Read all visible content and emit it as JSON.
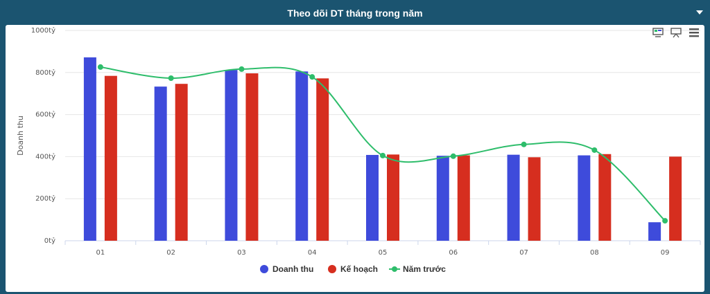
{
  "header": {
    "title": "Theo dõi DT tháng trong năm",
    "menu_icon": "caret-down-icon"
  },
  "toolbar": {
    "icons": [
      "presentation-view-icon",
      "projector-icon",
      "hamburger-menu-icon"
    ]
  },
  "chart_data": {
    "type": "bar",
    "title": "",
    "xlabel": "",
    "ylabel": "Doanh thu",
    "categories": [
      "01",
      "02",
      "03",
      "04",
      "05",
      "06",
      "07",
      "08",
      "09"
    ],
    "ylim": [
      0,
      1000
    ],
    "yticks": [
      0,
      200,
      400,
      600,
      800,
      1000
    ],
    "ytick_labels": [
      "0tỷ",
      "200tỷ",
      "400tỷ",
      "600tỷ",
      "800tỷ",
      "1000tỷ"
    ],
    "grid": true,
    "legend_position": "bottom-center",
    "series": [
      {
        "name": "Doanh thu",
        "type": "bar",
        "color": "#3e4bdb",
        "values": [
          872,
          733,
          812,
          805,
          408,
          404,
          409,
          406,
          88
        ]
      },
      {
        "name": "Kế hoạch",
        "type": "bar",
        "color": "#d62e1f",
        "values": [
          784,
          746,
          796,
          772,
          410,
          406,
          397,
          412,
          400
        ]
      },
      {
        "name": "Năm trước",
        "type": "line",
        "color": "#2ebd6b",
        "values": [
          826,
          773,
          816,
          779,
          405,
          402,
          458,
          431,
          95
        ]
      }
    ]
  }
}
